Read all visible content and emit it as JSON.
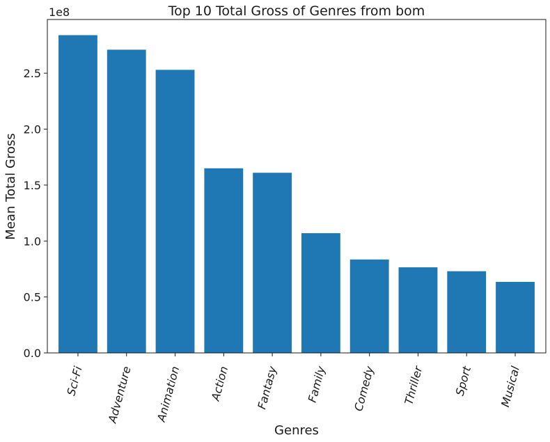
{
  "chart_data": {
    "type": "bar",
    "title": "Top 10 Total Gross of Genres from bom",
    "xlabel": "Genres",
    "ylabel": "Mean Total Gross",
    "y_offset_label": "1e8",
    "categories": [
      "Sci-Fi",
      "Adventure",
      "Animation",
      "Action",
      "Fantasy",
      "Family",
      "Comedy",
      "Thriller",
      "Sport",
      "Musical"
    ],
    "values": [
      284000000,
      271000000,
      253000000,
      165000000,
      161000000,
      107000000,
      83500000,
      76500000,
      73000000,
      63500000
    ],
    "ylim": [
      0,
      298000000
    ],
    "yticks": [
      0,
      50000000,
      100000000,
      150000000,
      200000000,
      250000000
    ],
    "ytick_labels": [
      "0.0",
      "0.5",
      "1.0",
      "1.5",
      "2.0",
      "2.5"
    ],
    "bar_color": "#1f77b4",
    "grid": false,
    "legend": "none",
    "xtick_rotation_deg": 75
  }
}
